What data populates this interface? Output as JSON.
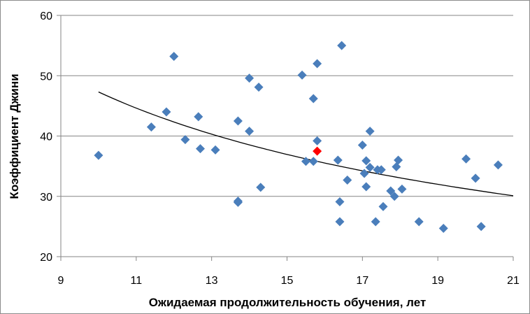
{
  "chart_data": {
    "type": "scatter",
    "xlabel": "Ожидаемая продолжительность обучения, лет",
    "ylabel": "Коэффициент Джини",
    "xlim": [
      9,
      21
    ],
    "ylim": [
      20,
      60
    ],
    "xticks": [
      "9",
      "11",
      "13",
      "15",
      "17",
      "19",
      "21"
    ],
    "yticks": [
      "20",
      "30",
      "40",
      "50",
      "60"
    ],
    "grid": "horizontal",
    "legend": "none",
    "marker": "diamond",
    "colors": {
      "points": "#4a7ebb",
      "highlight": "#ff0000",
      "trend": "#000000",
      "grid": "#868686"
    },
    "points": [
      [
        10.0,
        36.8
      ],
      [
        11.4,
        41.5
      ],
      [
        11.8,
        44.0
      ],
      [
        12.0,
        53.2
      ],
      [
        12.3,
        39.4
      ],
      [
        12.65,
        43.2
      ],
      [
        12.7,
        37.9
      ],
      [
        13.1,
        37.7
      ],
      [
        13.7,
        29.2
      ],
      [
        13.7,
        29.0
      ],
      [
        13.7,
        42.5
      ],
      [
        14.0,
        49.6
      ],
      [
        14.0,
        40.8
      ],
      [
        14.25,
        48.1
      ],
      [
        14.3,
        31.5
      ],
      [
        15.4,
        50.1
      ],
      [
        15.5,
        35.8
      ],
      [
        15.7,
        46.2
      ],
      [
        15.7,
        35.8
      ],
      [
        15.8,
        52.0
      ],
      [
        15.8,
        39.2
      ],
      [
        16.35,
        36.0
      ],
      [
        16.4,
        29.1
      ],
      [
        16.4,
        25.8
      ],
      [
        16.45,
        55.0
      ],
      [
        16.6,
        32.7
      ],
      [
        17.0,
        38.5
      ],
      [
        17.05,
        33.8
      ],
      [
        17.1,
        31.6
      ],
      [
        17.1,
        35.9
      ],
      [
        17.2,
        40.8
      ],
      [
        17.2,
        34.8
      ],
      [
        17.35,
        25.8
      ],
      [
        17.4,
        34.4
      ],
      [
        17.5,
        34.4
      ],
      [
        17.55,
        28.3
      ],
      [
        17.75,
        30.9
      ],
      [
        17.85,
        30.0
      ],
      [
        17.9,
        34.9
      ],
      [
        17.95,
        36.0
      ],
      [
        18.05,
        31.2
      ],
      [
        18.5,
        25.8
      ],
      [
        19.15,
        24.7
      ],
      [
        19.75,
        36.2
      ],
      [
        20.0,
        33.0
      ],
      [
        20.15,
        25.0
      ],
      [
        20.6,
        35.2
      ]
    ],
    "highlight_point": [
      15.8,
      37.5
    ],
    "trendline": {
      "type": "power",
      "from_x": 10.0,
      "to_x": 21.0,
      "y_at_from": 47.3,
      "y_at_to": 30.1
    }
  }
}
